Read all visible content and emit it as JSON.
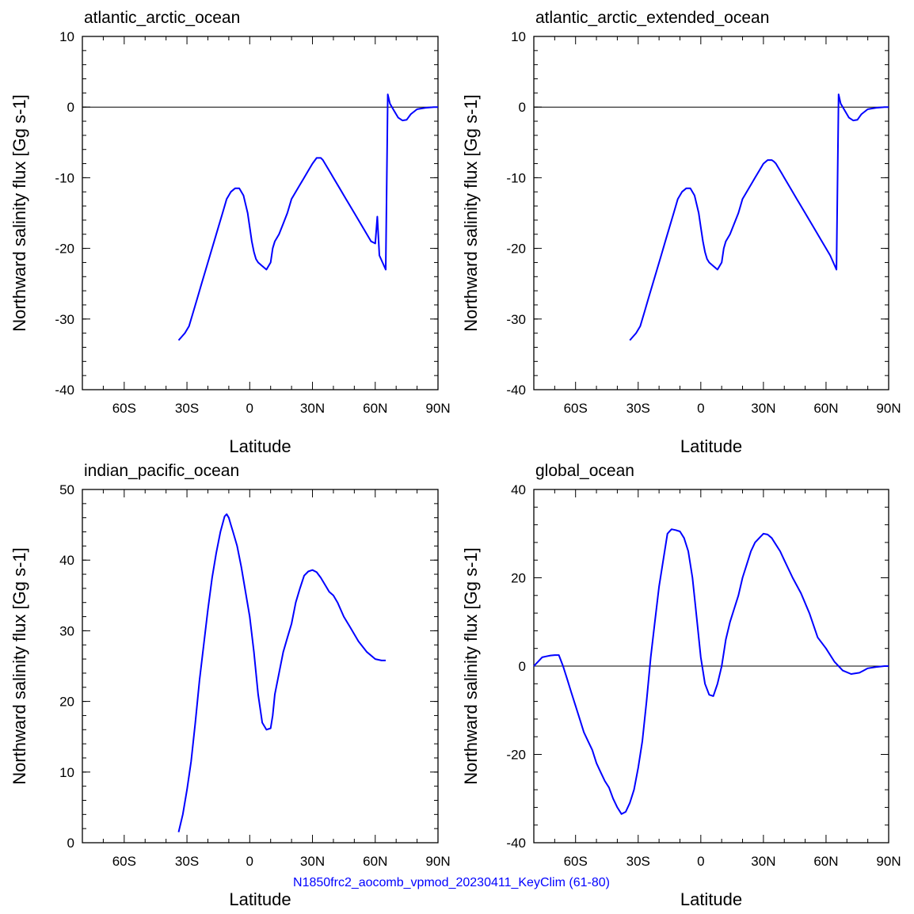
{
  "footer": {
    "text": "N1850frc2_aocomb_vpmod_20230411_KeyClim (61-80)",
    "color": "#0000ff"
  },
  "line_color": "#0000ff",
  "chart_data": [
    {
      "type": "line",
      "title": "atlantic_arctic_ocean",
      "xlabel": "Latitude",
      "ylabel": "Northward salinity flux [Gg s-1]",
      "xlim": [
        -80,
        90
      ],
      "ylim": [
        -40,
        10
      ],
      "xticks": [
        {
          "v": -60,
          "label": "60S"
        },
        {
          "v": -30,
          "label": "30S"
        },
        {
          "v": 0,
          "label": "0"
        },
        {
          "v": 30,
          "label": "30N"
        },
        {
          "v": 60,
          "label": "60N"
        },
        {
          "v": 90,
          "label": "90N"
        }
      ],
      "yticks": [
        {
          "v": -40,
          "label": "-40"
        },
        {
          "v": -30,
          "label": "-30"
        },
        {
          "v": -20,
          "label": "-20"
        },
        {
          "v": -10,
          "label": "-10"
        },
        {
          "v": 0,
          "label": "0"
        },
        {
          "v": 10,
          "label": "10"
        }
      ],
      "zero_line": true,
      "x": [
        -34,
        -31,
        -29,
        -27,
        -25,
        -23,
        -21,
        -19,
        -17,
        -15,
        -13,
        -11,
        -9,
        -7,
        -5,
        -3,
        -1,
        0,
        1,
        2,
        3,
        4,
        6,
        8,
        10,
        11,
        12,
        14,
        16,
        18,
        20,
        22,
        24,
        26,
        28,
        30,
        32,
        34,
        35,
        36,
        37,
        38,
        39,
        40,
        43,
        46,
        50,
        54,
        58,
        60,
        61,
        62,
        65,
        66,
        67,
        69,
        71,
        73,
        75,
        77,
        80,
        84,
        88,
        90
      ],
      "y": [
        -33,
        -32,
        -31,
        -29,
        -27,
        -25,
        -23,
        -21,
        -19,
        -17,
        -15,
        -13,
        -12,
        -11.5,
        -11.5,
        -12.5,
        -15,
        -17,
        -19,
        -20.5,
        -21.5,
        -22,
        -22.5,
        -23,
        -22,
        -20,
        -19,
        -18,
        -16.5,
        -15,
        -13,
        -12,
        -11,
        -10,
        -9,
        -8,
        -7.2,
        -7.2,
        -7.5,
        -8,
        -8.5,
        -9,
        -9.5,
        -10,
        -11.5,
        -13,
        -15,
        -17,
        -19,
        -19.3,
        -15.5,
        -21,
        -23,
        1.8,
        0.5,
        -0.5,
        -1.5,
        -1.9,
        -1.8,
        -1,
        -0.3,
        -0.1,
        0,
        0
      ]
    },
    {
      "type": "line",
      "title": "atlantic_arctic_extended_ocean",
      "xlabel": "Latitude",
      "ylabel": "Northward salinity flux [Gg s-1]",
      "xlim": [
        -80,
        90
      ],
      "ylim": [
        -40,
        10
      ],
      "xticks": [
        {
          "v": -60,
          "label": "60S"
        },
        {
          "v": -30,
          "label": "30S"
        },
        {
          "v": 0,
          "label": "0"
        },
        {
          "v": 30,
          "label": "30N"
        },
        {
          "v": 60,
          "label": "60N"
        },
        {
          "v": 90,
          "label": "90N"
        }
      ],
      "yticks": [
        {
          "v": -40,
          "label": "-40"
        },
        {
          "v": -30,
          "label": "-30"
        },
        {
          "v": -20,
          "label": "-20"
        },
        {
          "v": -10,
          "label": "-10"
        },
        {
          "v": 0,
          "label": "0"
        },
        {
          "v": 10,
          "label": "10"
        }
      ],
      "zero_line": true,
      "x": [
        -34,
        -31,
        -29,
        -27,
        -25,
        -23,
        -21,
        -19,
        -17,
        -15,
        -13,
        -11,
        -9,
        -7,
        -5,
        -3,
        -1,
        0,
        1,
        2,
        3,
        4,
        6,
        8,
        10,
        11,
        12,
        14,
        16,
        18,
        20,
        22,
        24,
        26,
        28,
        30,
        32,
        34,
        35,
        36,
        37,
        38,
        39,
        40,
        43,
        46,
        50,
        54,
        58,
        62,
        65,
        66,
        67,
        69,
        71,
        73,
        75,
        77,
        80,
        84,
        88,
        90
      ],
      "y": [
        -33,
        -32,
        -31,
        -29,
        -27,
        -25,
        -23,
        -21,
        -19,
        -17,
        -15,
        -13,
        -12,
        -11.5,
        -11.5,
        -12.5,
        -15,
        -17,
        -19,
        -20.5,
        -21.5,
        -22,
        -22.5,
        -23,
        -22,
        -20,
        -19,
        -18,
        -16.5,
        -15,
        -13,
        -12,
        -11,
        -10,
        -9,
        -8,
        -7.5,
        -7.5,
        -7.7,
        -8,
        -8.5,
        -9,
        -9.5,
        -10,
        -11.5,
        -13,
        -15,
        -17,
        -19,
        -21,
        -23,
        1.8,
        0.5,
        -0.5,
        -1.5,
        -1.9,
        -1.8,
        -1,
        -0.3,
        -0.1,
        0,
        0
      ]
    },
    {
      "type": "line",
      "title": "indian_pacific_ocean",
      "xlabel": "Latitude",
      "ylabel": "Northward salinity flux [Gg s-1]",
      "xlim": [
        -80,
        90
      ],
      "ylim": [
        0,
        50
      ],
      "xticks": [
        {
          "v": -60,
          "label": "60S"
        },
        {
          "v": -30,
          "label": "30S"
        },
        {
          "v": 0,
          "label": "0"
        },
        {
          "v": 30,
          "label": "30N"
        },
        {
          "v": 60,
          "label": "60N"
        },
        {
          "v": 90,
          "label": "90N"
        }
      ],
      "yticks": [
        {
          "v": 0,
          "label": "0"
        },
        {
          "v": 10,
          "label": "10"
        },
        {
          "v": 20,
          "label": "20"
        },
        {
          "v": 30,
          "label": "30"
        },
        {
          "v": 40,
          "label": "40"
        },
        {
          "v": 50,
          "label": "50"
        }
      ],
      "zero_line": false,
      "x": [
        -34,
        -32,
        -30,
        -28,
        -26,
        -24,
        -22,
        -20,
        -18,
        -16,
        -14,
        -12,
        -11,
        -10,
        -9,
        -8,
        -6,
        -4,
        -2,
        0,
        2,
        4,
        6,
        8,
        10,
        11,
        12,
        14,
        16,
        18,
        20,
        22,
        24,
        26,
        28,
        30,
        32,
        34,
        36,
        38,
        40,
        42,
        45,
        48,
        52,
        56,
        60,
        63,
        65
      ],
      "y": [
        1.5,
        4,
        7.5,
        11.5,
        17,
        23,
        28,
        33,
        37.5,
        41,
        44,
        46.2,
        46.5,
        46,
        45,
        44,
        42,
        39,
        35.5,
        32,
        27,
        21,
        17,
        16,
        16.2,
        18,
        21,
        24,
        27,
        29,
        31,
        34,
        36,
        37.8,
        38.4,
        38.6,
        38.3,
        37.5,
        36.5,
        35.5,
        35,
        34,
        32,
        30.5,
        28.5,
        27,
        26,
        25.8,
        25.8
      ]
    },
    {
      "type": "line",
      "title": "global_ocean",
      "xlabel": "Latitude",
      "ylabel": "Northward salinity flux [Gg s-1]",
      "xlim": [
        -80,
        90
      ],
      "ylim": [
        -40,
        40
      ],
      "xticks": [
        {
          "v": -60,
          "label": "60S"
        },
        {
          "v": -30,
          "label": "30S"
        },
        {
          "v": 0,
          "label": "0"
        },
        {
          "v": 30,
          "label": "30N"
        },
        {
          "v": 60,
          "label": "60N"
        },
        {
          "v": 90,
          "label": "90N"
        }
      ],
      "yticks": [
        {
          "v": -40,
          "label": "-40"
        },
        {
          "v": -20,
          "label": "-20"
        },
        {
          "v": 0,
          "label": "0"
        },
        {
          "v": 20,
          "label": "20"
        },
        {
          "v": 40,
          "label": "40"
        }
      ],
      "zero_line": true,
      "x": [
        -80,
        -78,
        -76,
        -74,
        -72,
        -70,
        -68,
        -66,
        -64,
        -62,
        -60,
        -58,
        -56,
        -54,
        -52,
        -50,
        -48,
        -46,
        -44,
        -42,
        -40,
        -38,
        -36,
        -34,
        -32,
        -30,
        -28,
        -26,
        -24,
        -22,
        -20,
        -18,
        -16,
        -14,
        -12,
        -10,
        -8,
        -6,
        -4,
        -2,
        0,
        2,
        4,
        6,
        8,
        10,
        11,
        12,
        14,
        16,
        18,
        20,
        22,
        24,
        26,
        28,
        30,
        32,
        34,
        36,
        38,
        40,
        44,
        48,
        52,
        56,
        60,
        64,
        68,
        72,
        76,
        78,
        80,
        84,
        88,
        90
      ],
      "y": [
        0,
        1,
        2,
        2.2,
        2.4,
        2.5,
        2.5,
        0,
        -3,
        -6,
        -9,
        -12,
        -15,
        -17,
        -19,
        -22,
        -24,
        -26,
        -27.5,
        -30,
        -32,
        -33.5,
        -33,
        -31,
        -28,
        -23,
        -17,
        -8,
        2,
        10,
        18,
        24,
        30,
        31,
        30.8,
        30.5,
        29,
        26,
        20,
        11,
        2,
        -4,
        -6.5,
        -6.8,
        -4,
        0,
        3,
        6,
        10,
        13,
        16,
        20,
        23,
        26,
        28,
        29,
        30,
        29.8,
        29,
        27.5,
        26,
        24,
        20,
        16.5,
        12,
        6.5,
        4,
        1,
        -1,
        -1.8,
        -1.5,
        -1,
        -0.5,
        -0.2,
        0,
        0
      ]
    }
  ]
}
